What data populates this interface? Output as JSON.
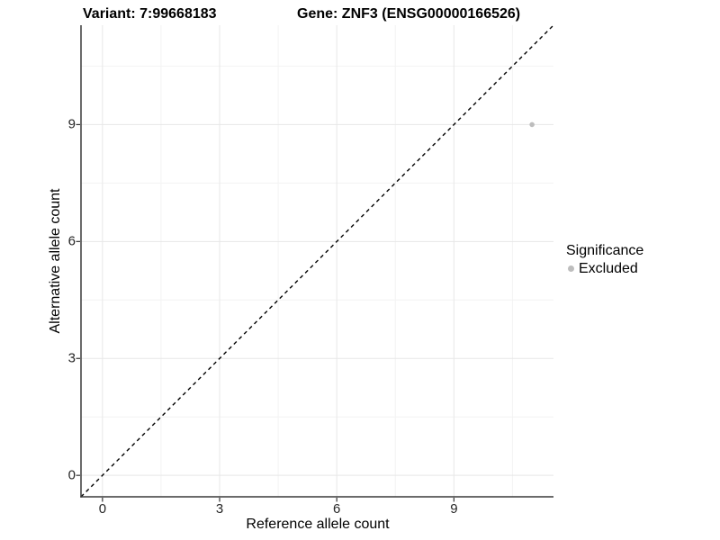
{
  "chart_data": {
    "type": "scatter",
    "title_left": "Variant: 7:99668183",
    "title_right": "Gene: ZNF3 (ENSG00000166526)",
    "xlabel": "Reference allele count",
    "ylabel": "Alternative allele count",
    "xlim": [
      -0.55,
      11.55
    ],
    "ylim": [
      -0.55,
      11.55
    ],
    "x_ticks": [
      0,
      3,
      6,
      9
    ],
    "y_ticks": [
      0,
      3,
      6,
      9
    ],
    "x_minor_ticks": [
      1.5,
      4.5,
      7.5,
      10.5
    ],
    "y_minor_ticks": [
      1.5,
      4.5,
      7.5,
      10.5
    ],
    "grid": true,
    "reference_line": {
      "slope": 1,
      "intercept": 0,
      "style": "dashed",
      "color": "#000000"
    },
    "series": [
      {
        "name": "Excluded",
        "color": "#BDBDBD",
        "points": [
          {
            "x": 11,
            "y": 9
          }
        ]
      }
    ],
    "legend": {
      "title": "Significance",
      "position": "right",
      "items": [
        {
          "label": "Excluded",
          "color": "#BDBDBD"
        }
      ]
    },
    "colors": {
      "background": "#FFFFFF",
      "grid_major": "#E7E7E7",
      "grid_minor": "#F3F3F3",
      "axis_line": "#3A3A3A",
      "tick_mark": "#333333",
      "tick_text": "#262626",
      "point": "#BDBDBD"
    }
  }
}
